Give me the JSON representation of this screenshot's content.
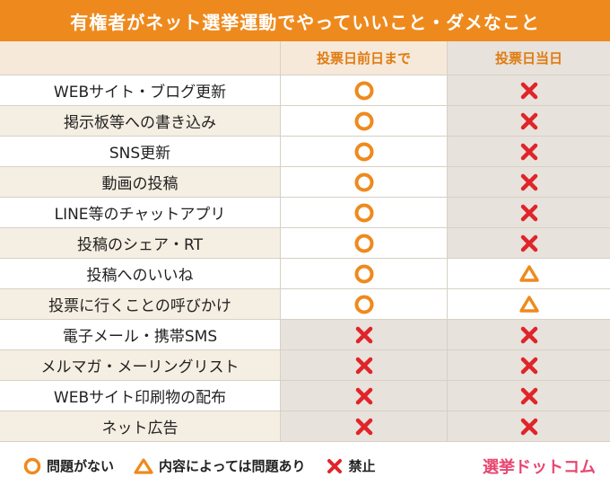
{
  "title": "有権者がネット選挙運動でやっていいこと・ダメなこと",
  "columns": {
    "item": "",
    "before": "投票日前日まで",
    "today": "投票日当日"
  },
  "rows": [
    {
      "label": "WEBサイト・ブログ更新",
      "before": "circle",
      "today": "cross"
    },
    {
      "label": "掲示板等への書き込み",
      "before": "circle",
      "today": "cross"
    },
    {
      "label": "SNS更新",
      "before": "circle",
      "today": "cross"
    },
    {
      "label": "動画の投稿",
      "before": "circle",
      "today": "cross"
    },
    {
      "label": "LINE等のチャットアプリ",
      "before": "circle",
      "today": "cross"
    },
    {
      "label": "投稿のシェア・RT",
      "before": "circle",
      "today": "cross"
    },
    {
      "label": "投稿へのいいね",
      "before": "circle",
      "today": "triangle"
    },
    {
      "label": "投票に行くことの呼びかけ",
      "before": "circle",
      "today": "triangle"
    },
    {
      "label": "電子メール・携帯SMS",
      "before": "cross",
      "today": "cross"
    },
    {
      "label": "メルマガ・メーリングリスト",
      "before": "cross",
      "today": "cross"
    },
    {
      "label": "WEBサイト印刷物の配布",
      "before": "cross",
      "today": "cross"
    },
    {
      "label": "ネット広告",
      "before": "cross",
      "today": "cross"
    }
  ],
  "legend": {
    "circle": "問題がない",
    "triangle": "内容によっては問題あり",
    "cross": "禁止"
  },
  "logo": "選挙ドットコム",
  "colors": {
    "orange": "#ee8a1d",
    "red": "#e0242a",
    "header_bg": "#f6e9da"
  }
}
